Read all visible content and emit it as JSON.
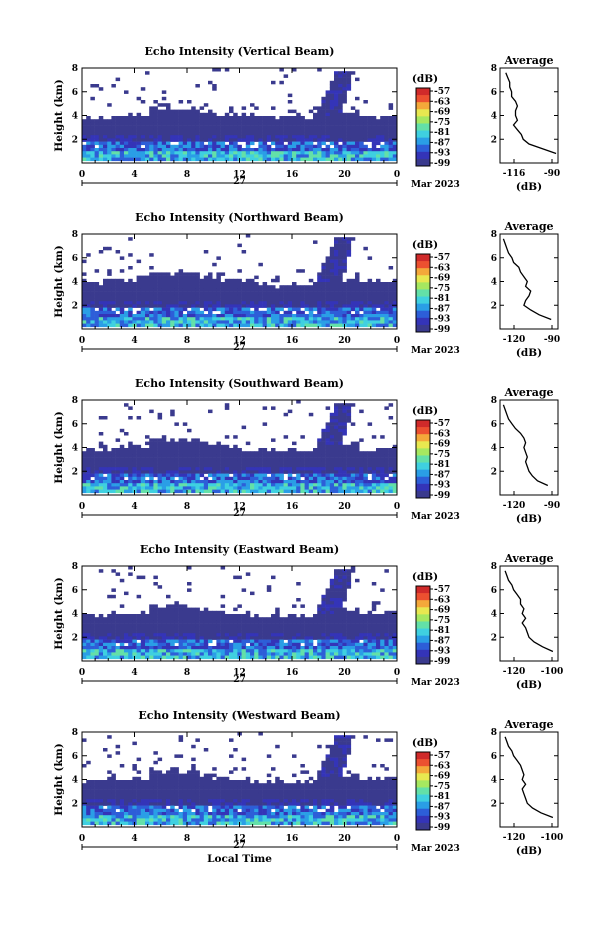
{
  "figure": {
    "xlabel": "Local Time",
    "date_label": "Mar 2023",
    "day_label": "27"
  },
  "chart_data": [
    {
      "type": "heatmap",
      "title": "Echo Intensity (Vertical Beam)",
      "ylabel": "Height (km)",
      "xlim": [
        0,
        24
      ],
      "ylim": [
        0,
        8
      ],
      "xticks": [
        "0",
        "4",
        "8",
        "12",
        "16",
        "20",
        "0"
      ],
      "yticks": [
        "2",
        "4",
        "6",
        "8"
      ],
      "colorbar": {
        "unit": "(dB)",
        "ticks": [
          "-57",
          "-63",
          "-69",
          "-75",
          "-81",
          "-87",
          "-93",
          "-99"
        ]
      },
      "profile": {
        "title": "Average",
        "xlabel": "(dB)",
        "xticks": [
          "-116",
          "-90"
        ],
        "yticks": [
          "2",
          "4",
          "6",
          "8"
        ],
        "xlim": [
          -118,
          -88
        ],
        "heights": [
          0.8,
          1.2,
          1.6,
          2.0,
          2.4,
          2.8,
          3.2,
          3.6,
          4.0,
          4.4,
          4.8,
          5.2,
          5.6,
          6.0,
          6.4,
          6.8,
          7.2,
          7.6
        ],
        "values": [
          -89,
          -96,
          -103,
          -106,
          -107,
          -109,
          -111,
          -109,
          -110,
          -110,
          -109,
          -110,
          -112,
          -112,
          -113,
          -113,
          -114,
          -115
        ]
      }
    },
    {
      "type": "heatmap",
      "title": "Echo Intensity (Northward Beam)",
      "ylabel": "Height (km)",
      "xlim": [
        0,
        24
      ],
      "ylim": [
        0,
        8
      ],
      "xticks": [
        "0",
        "4",
        "8",
        "12",
        "16",
        "20",
        "0"
      ],
      "yticks": [
        "2",
        "4",
        "6",
        "8"
      ],
      "colorbar": {
        "unit": "(dB)",
        "ticks": [
          "-57",
          "-63",
          "-69",
          "-75",
          "-81",
          "-87",
          "-93",
          "-99"
        ]
      },
      "profile": {
        "title": "Average",
        "xlabel": "(dB)",
        "xticks": [
          "-120",
          "-90"
        ],
        "yticks": [
          "2",
          "4",
          "6",
          "8"
        ],
        "xlim": [
          -122,
          -88
        ],
        "heights": [
          0.8,
          1.2,
          1.6,
          2.0,
          2.4,
          2.8,
          3.2,
          3.6,
          4.0,
          4.4,
          4.8,
          5.2,
          5.6,
          6.0,
          6.4,
          6.8,
          7.2,
          7.6
        ],
        "values": [
          -92,
          -99,
          -104,
          -108,
          -107,
          -105,
          -104,
          -107,
          -106,
          -108,
          -110,
          -111,
          -114,
          -115,
          -117,
          -118,
          -119,
          -120
        ]
      }
    },
    {
      "type": "heatmap",
      "title": "Echo Intensity (Southward Beam)",
      "ylabel": "Height (km)",
      "xlim": [
        0,
        24
      ],
      "ylim": [
        0,
        8
      ],
      "xticks": [
        "0",
        "4",
        "8",
        "12",
        "16",
        "20",
        "0"
      ],
      "yticks": [
        "2",
        "4",
        "6",
        "8"
      ],
      "colorbar": {
        "unit": "(dB)",
        "ticks": [
          "-57",
          "-63",
          "-69",
          "-75",
          "-81",
          "-87",
          "-93",
          "-99"
        ]
      },
      "profile": {
        "title": "Average",
        "xlabel": "(dB)",
        "xticks": [
          "-120",
          "-90"
        ],
        "yticks": [
          "2",
          "4",
          "6",
          "8"
        ],
        "xlim": [
          -122,
          -88
        ],
        "heights": [
          0.8,
          1.2,
          1.6,
          2.0,
          2.4,
          2.8,
          3.2,
          3.6,
          4.0,
          4.4,
          4.8,
          5.2,
          5.6,
          6.0,
          6.4,
          6.8,
          7.2,
          7.6
        ],
        "values": [
          -94,
          -100,
          -103,
          -105,
          -106,
          -107,
          -106,
          -107,
          -108,
          -107,
          -108,
          -110,
          -113,
          -115,
          -117,
          -118,
          -119,
          -120
        ]
      }
    },
    {
      "type": "heatmap",
      "title": "Echo Intensity (Eastward Beam)",
      "ylabel": "Height (km)",
      "xlim": [
        0,
        24
      ],
      "ylim": [
        0,
        8
      ],
      "xticks": [
        "0",
        "4",
        "8",
        "12",
        "16",
        "20",
        "0"
      ],
      "yticks": [
        "2",
        "4",
        "6",
        "8"
      ],
      "colorbar": {
        "unit": "(dB)",
        "ticks": [
          "-57",
          "-63",
          "-69",
          "-75",
          "-81",
          "-87",
          "-93",
          "-99"
        ]
      },
      "profile": {
        "title": "Average",
        "xlabel": "(dB)",
        "xticks": [
          "-120",
          "-100"
        ],
        "yticks": [
          "2",
          "4",
          "6",
          "8"
        ],
        "xlim": [
          -122,
          -88
        ],
        "heights": [
          0.8,
          1.2,
          1.6,
          2.0,
          2.4,
          2.8,
          3.2,
          3.6,
          4.0,
          4.4,
          4.8,
          5.2,
          5.6,
          6.0,
          6.4,
          6.8,
          7.2,
          7.6
        ],
        "values": [
          -91,
          -97,
          -102,
          -105,
          -106,
          -107,
          -109,
          -107,
          -109,
          -108,
          -110,
          -110,
          -112,
          -114,
          -115,
          -117,
          -118,
          -119
        ]
      }
    },
    {
      "type": "heatmap",
      "title": "Echo Intensity (Westward Beam)",
      "ylabel": "Height (km)",
      "xlim": [
        0,
        24
      ],
      "ylim": [
        0,
        8
      ],
      "xticks": [
        "0",
        "4",
        "8",
        "12",
        "16",
        "20",
        "0"
      ],
      "yticks": [
        "2",
        "4",
        "6",
        "8"
      ],
      "colorbar": {
        "unit": "(dB)",
        "ticks": [
          "-57",
          "-63",
          "-69",
          "-75",
          "-81",
          "-87",
          "-93",
          "-99"
        ]
      },
      "profile": {
        "title": "Average",
        "xlabel": "(dB)",
        "xticks": [
          "-120",
          "-100"
        ],
        "yticks": [
          "2",
          "4",
          "6",
          "8"
        ],
        "xlim": [
          -122,
          -88
        ],
        "heights": [
          0.8,
          1.2,
          1.6,
          2.0,
          2.4,
          2.8,
          3.2,
          3.6,
          4.0,
          4.4,
          4.8,
          5.2,
          5.6,
          6.0,
          6.4,
          6.8,
          7.2,
          7.6
        ],
        "values": [
          -91,
          -98,
          -103,
          -106,
          -107,
          -108,
          -109,
          -107,
          -109,
          -108,
          -109,
          -110,
          -112,
          -114,
          -115,
          -117,
          -118,
          -119
        ]
      }
    }
  ]
}
